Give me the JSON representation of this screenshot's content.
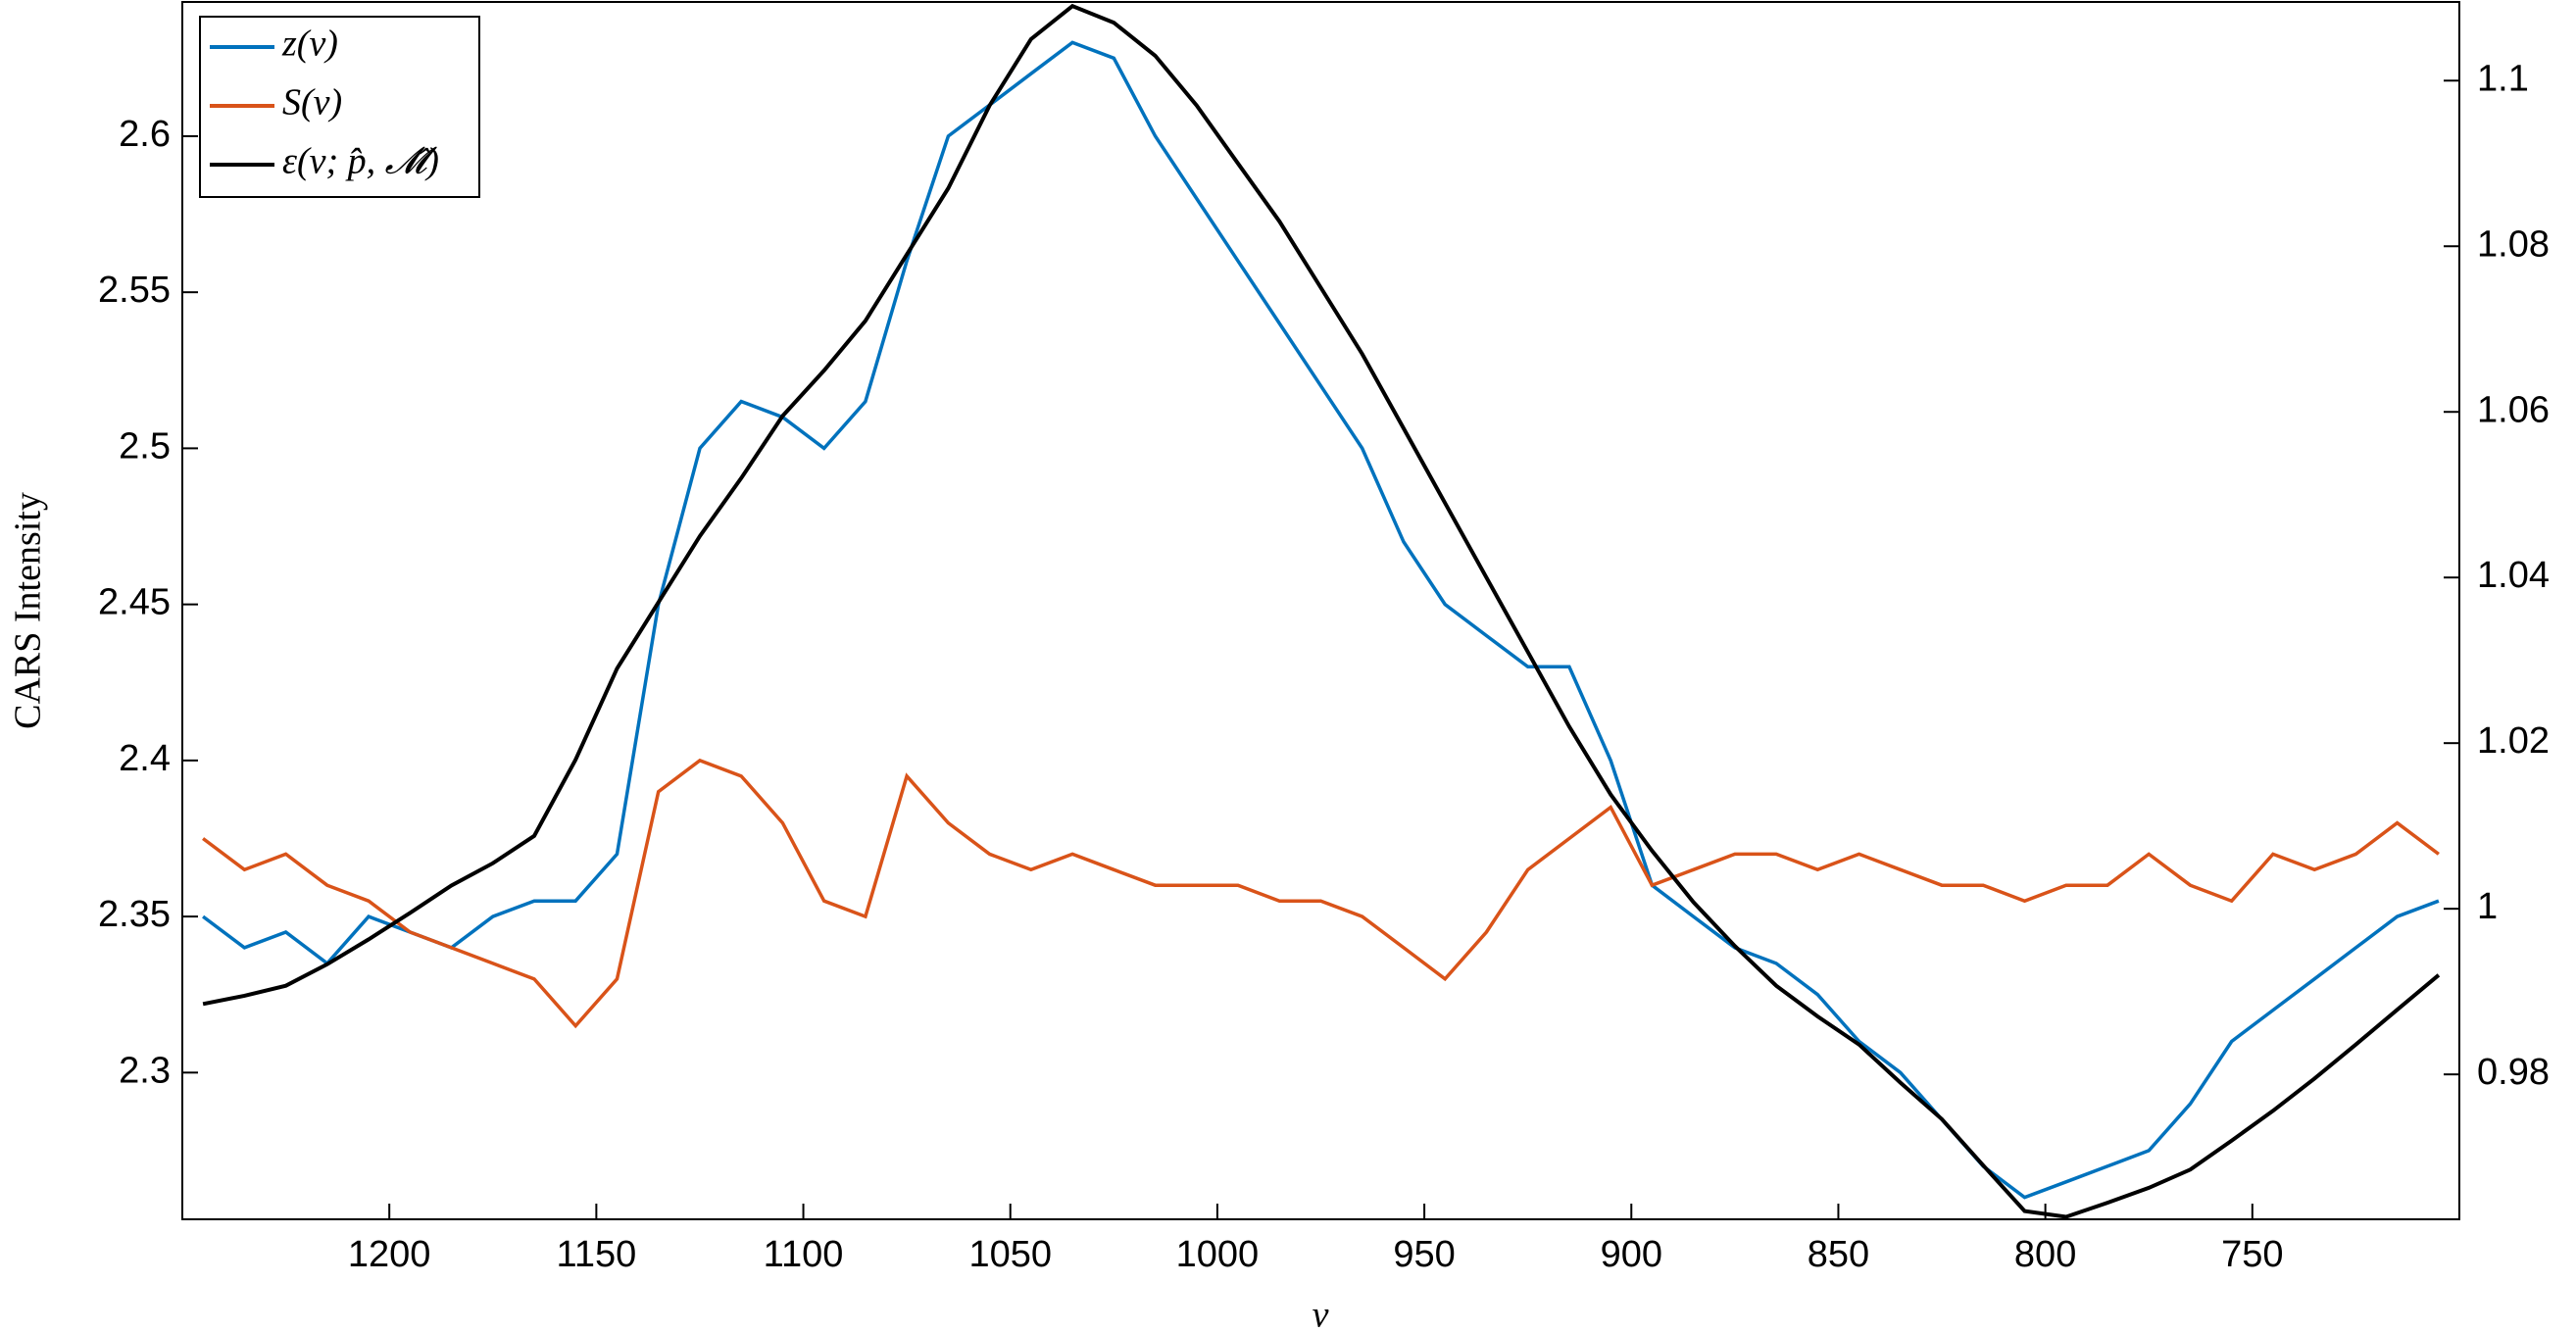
{
  "chart_data": {
    "type": "line",
    "xlabel": "ν",
    "ylabel": "CARS Intensity",
    "x": [
      1245,
      1235,
      1225,
      1215,
      1205,
      1195,
      1185,
      1175,
      1165,
      1155,
      1145,
      1135,
      1125,
      1115,
      1105,
      1095,
      1085,
      1075,
      1065,
      1055,
      1045,
      1035,
      1025,
      1015,
      1005,
      995,
      985,
      975,
      965,
      955,
      945,
      935,
      925,
      915,
      905,
      895,
      885,
      875,
      865,
      855,
      845,
      835,
      825,
      815,
      805,
      795,
      785,
      775,
      765,
      755,
      745,
      735,
      725,
      715,
      705
    ],
    "xlim": [
      1250,
      700
    ],
    "xticks": [
      1200,
      1150,
      1100,
      1050,
      1000,
      950,
      900,
      850,
      800,
      750
    ],
    "ylim": [
      2.253,
      2.643
    ],
    "yticks": [
      2.3,
      2.35,
      2.4,
      2.45,
      2.5,
      2.55,
      2.6
    ],
    "y2lim": [
      0.9625,
      1.1095
    ],
    "y2ticks": [
      0.98,
      1,
      1.02,
      1.04,
      1.06,
      1.08,
      1.1
    ],
    "legend": "upper left",
    "series": [
      {
        "name": "z(ν)",
        "color": "#0072bd",
        "values": [
          2.35,
          2.34,
          2.345,
          2.335,
          2.35,
          2.345,
          2.34,
          2.35,
          2.355,
          2.355,
          2.37,
          2.45,
          2.5,
          2.515,
          2.51,
          2.5,
          2.515,
          2.56,
          2.6,
          2.61,
          2.62,
          2.63,
          2.625,
          2.6,
          2.58,
          2.56,
          2.54,
          2.52,
          2.5,
          2.47,
          2.45,
          2.44,
          2.43,
          2.43,
          2.4,
          2.36,
          2.35,
          2.34,
          2.335,
          2.325,
          2.31,
          2.3,
          2.285,
          2.27,
          2.26,
          2.265,
          2.27,
          2.275,
          2.29,
          2.31,
          2.32,
          2.33,
          2.34,
          2.35,
          2.355
        ]
      },
      {
        "name": "S(ν)",
        "color": "#d95319",
        "values": [
          2.375,
          2.365,
          2.37,
          2.36,
          2.355,
          2.345,
          2.34,
          2.335,
          2.33,
          2.315,
          2.33,
          2.39,
          2.4,
          2.395,
          2.38,
          2.355,
          2.35,
          2.395,
          2.38,
          2.37,
          2.365,
          2.37,
          2.365,
          2.36,
          2.36,
          2.36,
          2.355,
          2.355,
          2.35,
          2.34,
          2.33,
          2.345,
          2.365,
          2.375,
          2.385,
          2.36,
          2.365,
          2.37,
          2.37,
          2.365,
          2.37,
          2.365,
          2.36,
          2.36,
          2.355,
          2.36,
          2.36,
          2.37,
          2.36,
          2.355,
          2.37,
          2.365,
          2.37,
          2.38,
          2.37
        ]
      },
      {
        "name": "ε(ν; p̂, 𝓜̂)",
        "color": "#000000",
        "axis": "y2",
        "values": [
          0.9885,
          0.9895,
          0.9907,
          0.9933,
          0.9963,
          0.9995,
          1.0028,
          1.0055,
          1.0088,
          1.018,
          1.029,
          1.037,
          1.045,
          1.052,
          1.0595,
          1.065,
          1.071,
          1.079,
          1.087,
          1.097,
          1.105,
          1.109,
          1.107,
          1.103,
          1.097,
          1.09,
          1.083,
          1.075,
          1.067,
          1.058,
          1.049,
          1.04,
          1.031,
          1.022,
          1.0138,
          1.007,
          1.0008,
          0.9955,
          0.9907,
          0.987,
          0.9836,
          0.979,
          0.9746,
          0.969,
          0.9635,
          0.9628,
          0.9645,
          0.9663,
          0.9685,
          0.972,
          0.9756,
          0.9795,
          0.9836,
          0.9878,
          0.992
        ]
      }
    ]
  }
}
